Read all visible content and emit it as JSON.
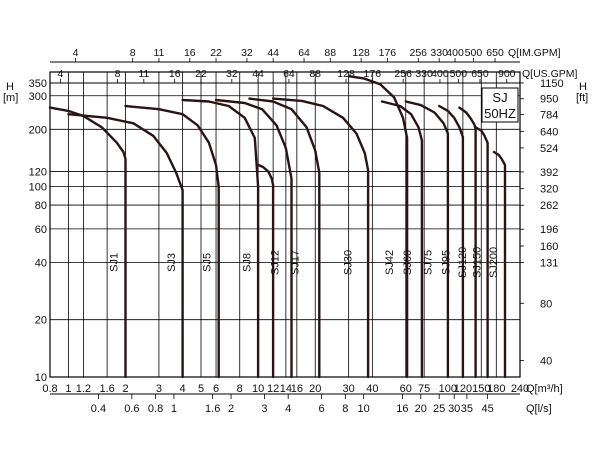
{
  "chart_data": {
    "type": "line",
    "title": "SJ",
    "subtitle": "50HZ",
    "scale": "log-log",
    "grid": true,
    "left_axis": {
      "unit_line1": "H",
      "unit_line2": "[m]",
      "ticks": [
        10,
        20,
        40,
        60,
        80,
        100,
        120,
        200,
        300,
        350
      ],
      "ylim": [
        10,
        400
      ]
    },
    "right_axis": {
      "unit_line1": "H",
      "unit_line2": "[ft]",
      "ticks": [
        40,
        80,
        131,
        160,
        196,
        262,
        320,
        392,
        524,
        640,
        784,
        950,
        1150
      ]
    },
    "bottom_axis": {
      "unit": "Q[m³/h]",
      "ticks": [
        0.8,
        1,
        1.2,
        1.6,
        2,
        3,
        4,
        5,
        6,
        8,
        10,
        12,
        14,
        16,
        20,
        30,
        40,
        60,
        75,
        100,
        120,
        150,
        180,
        240
      ],
      "xlim": [
        0.8,
        240
      ]
    },
    "bottom2_axis": {
      "unit": "Q[l/s]",
      "ticks": [
        0.4,
        0.6,
        0.8,
        1,
        1.6,
        2,
        3,
        4,
        6,
        8,
        10,
        16,
        20,
        25,
        30,
        35,
        45
      ]
    },
    "top_us_axis": {
      "unit": "Q[US.GPM]",
      "ticks": [
        4,
        8,
        11,
        16,
        22,
        32,
        44,
        64,
        88,
        128,
        176,
        256,
        330,
        400,
        500,
        650,
        900
      ]
    },
    "top_im_axis": {
      "unit": "Q[IM.GPM]",
      "ticks": [
        4,
        8,
        11,
        16,
        22,
        32,
        44,
        64,
        88,
        128,
        176,
        256,
        330,
        400,
        500,
        650
      ]
    },
    "series": [
      {
        "name": "SJ1",
        "x": [
          0.8,
          1.0,
          1.2,
          1.5,
          1.8,
          1.95,
          2.0,
          2.0
        ],
        "y": [
          260,
          250,
          235,
          205,
          170,
          152,
          140,
          10
        ]
      },
      {
        "name": "SJ3",
        "x": [
          1.0,
          1.6,
          2.2,
          2.8,
          3.3,
          3.7,
          4.0,
          4.0
        ],
        "y": [
          240,
          230,
          215,
          185,
          150,
          118,
          96,
          10
        ]
      },
      {
        "name": "SJ5",
        "x": [
          2.0,
          3.0,
          4.0,
          4.8,
          5.5,
          6.0,
          6.2,
          6.2
        ],
        "y": [
          265,
          255,
          240,
          210,
          170,
          130,
          100,
          10
        ]
      },
      {
        "name": "SJ8",
        "x": [
          4.0,
          5.5,
          7.0,
          8.5,
          9.6,
          10.0,
          10.0
        ],
        "y": [
          285,
          280,
          265,
          230,
          180,
          100,
          10
        ]
      },
      {
        "name": "SJ8",
        "x": [
          10.0,
          10.6,
          11.3,
          11.8,
          12.0,
          12.0
        ],
        "y": [
          130,
          127,
          120,
          110,
          102,
          10
        ]
      },
      {
        "name": "SJ12",
        "x": [
          6.0,
          8.5,
          10.5,
          12.5,
          14.0,
          15.0,
          15.0
        ],
        "y": [
          285,
          275,
          255,
          210,
          160,
          110,
          10
        ]
      },
      {
        "name": "SJ17",
        "x": [
          9.0,
          12.0,
          15.0,
          18.0,
          20.0,
          21.0,
          21.0
        ],
        "y": [
          290,
          280,
          255,
          205,
          155,
          118,
          10
        ]
      },
      {
        "name": "SJ30",
        "x": [
          12.0,
          17.0,
          22.0,
          28.0,
          33.0,
          36.5,
          38.0,
          38.0
        ],
        "y": [
          290,
          282,
          265,
          230,
          190,
          150,
          122,
          10
        ]
      },
      {
        "name": "SJ42",
        "x": [
          30.0,
          36.0,
          44.0,
          52.0,
          58.0,
          61.0,
          61.0
        ],
        "y": [
          380,
          370,
          345,
          295,
          230,
          180,
          10
        ]
      },
      {
        "name": "SJ60",
        "x": [
          45.0,
          56.0,
          64.0,
          70.0,
          73.0,
          73.0
        ],
        "y": [
          280,
          265,
          240,
          205,
          175,
          10
        ]
      },
      {
        "name": "SJ75",
        "x": [
          60.0,
          72.0,
          85.0,
          95.0,
          100.0,
          100.0
        ],
        "y": [
          280,
          268,
          245,
          215,
          190,
          10
        ]
      },
      {
        "name": "SJ95",
        "x": [
          90.0,
          100.0,
          108.0,
          115.0,
          120.0,
          120.0
        ],
        "y": [
          265,
          250,
          230,
          205,
          182,
          10
        ]
      },
      {
        "name": "SJ120",
        "x": [
          115.0,
          125.0,
          132.0,
          138.0,
          140.0,
          140.0
        ],
        "y": [
          260,
          245,
          228,
          212,
          200,
          10
        ]
      },
      {
        "name": "SJ150",
        "x": [
          140.0,
          150.0,
          156.0,
          162.0,
          162.0
        ],
        "y": [
          205,
          197,
          185,
          170,
          10
        ]
      },
      {
        "name": "SJ200",
        "x": [
          175.0,
          185.0,
          192.0,
          200.0,
          200.0
        ],
        "y": [
          152,
          147,
          140,
          130,
          10
        ]
      }
    ],
    "labels": [
      {
        "text": "SJ1",
        "x": 1.82,
        "y": 40
      },
      {
        "text": "SJ3",
        "x": 3.65,
        "y": 40
      },
      {
        "text": "SJ5",
        "x": 5.6,
        "y": 40
      },
      {
        "text": "SJ8",
        "x": 9.1,
        "y": 40
      },
      {
        "text": "SJ12",
        "x": 12.8,
        "y": 40
      },
      {
        "text": "SJ17",
        "x": 16.3,
        "y": 40
      },
      {
        "text": "SJ30",
        "x": 31.0,
        "y": 40
      },
      {
        "text": "SJ42",
        "x": 51.5,
        "y": 40
      },
      {
        "text": "SJ60",
        "x": 64.0,
        "y": 40
      },
      {
        "text": "SJ75",
        "x": 82.0,
        "y": 40
      },
      {
        "text": "SJ95",
        "x": 102.0,
        "y": 40
      },
      {
        "text": "SJ120",
        "x": 125.0,
        "y": 40
      },
      {
        "text": "SJ150",
        "x": 149.0,
        "y": 40
      },
      {
        "text": "SJ200",
        "x": 181.0,
        "y": 40
      }
    ],
    "colors": {
      "line": "#000000",
      "curve": "#2a1414",
      "text": "#111111"
    }
  }
}
